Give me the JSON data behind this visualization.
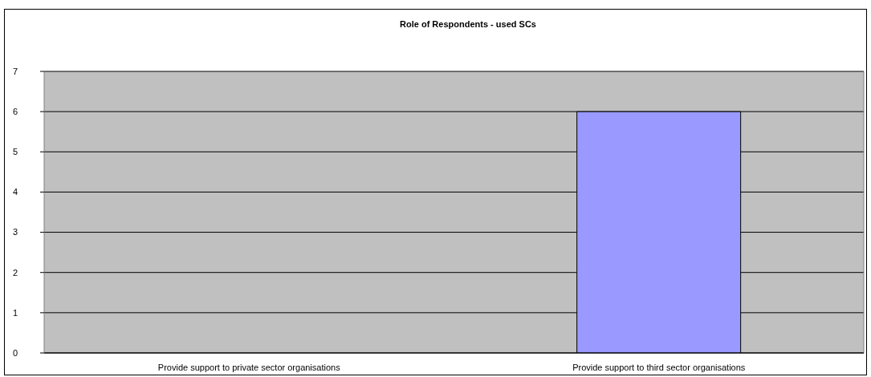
{
  "chart_data": {
    "type": "bar",
    "title": "Role of Respondents - used SCs",
    "categories": [
      "Provide support to private sector organisations",
      "Provide support to third sector organisations"
    ],
    "values": [
      0,
      6
    ],
    "color": "#9999ff",
    "ylim": [
      0,
      7
    ],
    "yticks": [
      0,
      1,
      2,
      3,
      4,
      5,
      6,
      7
    ],
    "grid": "y"
  }
}
